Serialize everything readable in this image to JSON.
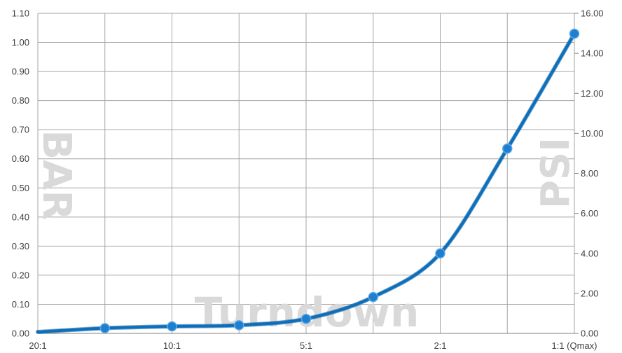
{
  "chart_data": {
    "type": "line",
    "xlabel": "Turndown",
    "ylabel_left": "BAR",
    "ylabel_right": "PSI",
    "categories": [
      "20:1",
      "",
      "10:1",
      "",
      "5:1",
      "",
      "2:1",
      "",
      "1:1 (Qmax)"
    ],
    "x_tick_labels": [
      "20:1",
      "10:1",
      "5:1",
      "2:1",
      "1:1 (Qmax)"
    ],
    "y_left_ticks": [
      "0.00",
      "0.10",
      "0.20",
      "0.30",
      "0.40",
      "0.50",
      "0.60",
      "0.70",
      "0.80",
      "0.90",
      "1.00",
      "1.10"
    ],
    "y_right_ticks": [
      "0.00",
      "2.00",
      "4.00",
      "6.00",
      "8.00",
      "10.00",
      "12.00",
      "14.00",
      "16.00"
    ],
    "ylim_left": [
      0,
      1.1
    ],
    "ylim_right": [
      0,
      16
    ],
    "grid": true,
    "legend": "none",
    "series": [
      {
        "values": [
          0.005,
          0.018,
          0.024,
          0.028,
          0.05,
          0.125,
          0.275,
          0.635,
          1.03
        ],
        "markers": [
          false,
          true,
          true,
          true,
          true,
          true,
          true,
          true,
          true
        ],
        "color": "#0a6fbd"
      }
    ],
    "colors": {
      "line": "#0a6fbd",
      "marker": "#1e7fd0",
      "grid": "#a6a6a6",
      "watermark": "#d9d9d9",
      "tick_text": "#404040"
    }
  }
}
